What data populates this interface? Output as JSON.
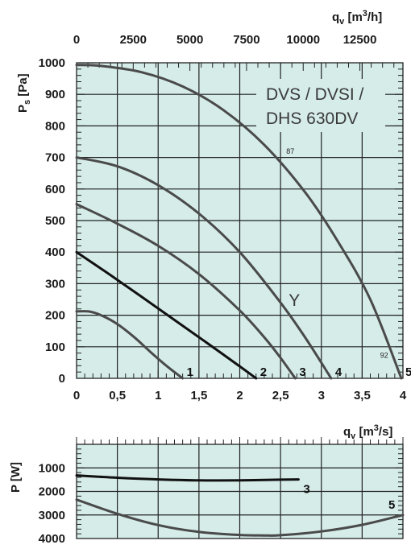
{
  "chart_data": [
    {
      "type": "line",
      "title": "DVS / DVSI / DHS 630DV",
      "title_lines": [
        "DVS / DVSI /",
        "DHS 630DV"
      ],
      "xlabel": "qv [m3/s]",
      "x2label": "qv [m3/h]",
      "ylabel": "Ps [Pa]",
      "xlim": [
        0,
        4
      ],
      "ylim": [
        0,
        1000
      ],
      "x2lim": [
        0,
        14400
      ],
      "x_ticks": [
        "0",
        "0,5",
        "1",
        "1,5",
        "2",
        "2,5",
        "3",
        "3,5",
        "4"
      ],
      "x2_ticks": [
        "0",
        "2500",
        "5000",
        "7500",
        "10000",
        "12500"
      ],
      "y_ticks": [
        "0",
        "100",
        "200",
        "300",
        "400",
        "500",
        "600",
        "700",
        "800",
        "900",
        "1000"
      ],
      "grid": true,
      "series": [
        {
          "name": "1",
          "color": "#4a4a4a",
          "x": [
            0,
            0.15,
            0.3,
            0.5,
            0.7,
            0.9,
            1.1,
            1.3
          ],
          "y": [
            212,
            212,
            200,
            172,
            132,
            85,
            40,
            0
          ]
        },
        {
          "name": "2",
          "color": "#111111",
          "x": [
            0,
            0.4,
            0.8,
            1.2,
            1.6,
            2.0,
            2.2
          ],
          "y": [
            400,
            330,
            258,
            185,
            112,
            38,
            0
          ]
        },
        {
          "name": "3",
          "color": "#4a4a4a",
          "x": [
            0,
            0.5,
            1.0,
            1.5,
            2.0,
            2.3,
            2.5,
            2.68
          ],
          "y": [
            552,
            490,
            420,
            330,
            215,
            130,
            65,
            0
          ]
        },
        {
          "name": "4",
          "color": "#4a4a4a",
          "x": [
            0,
            0.5,
            1.0,
            1.5,
            2.0,
            2.5,
            2.8,
            3.12
          ],
          "y": [
            700,
            672,
            612,
            522,
            400,
            240,
            130,
            0
          ]
        },
        {
          "name": "5",
          "color": "#4a4a4a",
          "x": [
            0,
            0.3,
            0.8,
            1.3,
            1.8,
            2.3,
            2.8,
            3.2,
            3.6,
            3.98
          ],
          "y": [
            993,
            990,
            970,
            925,
            850,
            740,
            590,
            435,
            250,
            0
          ]
        }
      ],
      "annotations": [
        {
          "text": "Y",
          "x": 2.6,
          "y": 230
        },
        {
          "text": "87",
          "x": 2.57,
          "y": 712
        },
        {
          "text": "92",
          "x": 3.72,
          "y": 65
        }
      ]
    },
    {
      "type": "line",
      "xlabel": "qv [m3/s]",
      "ylabel": "P [W]",
      "xlim": [
        0,
        4
      ],
      "ylim": [
        4000,
        0
      ],
      "y_ticks": [
        "1000",
        "2000",
        "3000",
        "4000"
      ],
      "grid": true,
      "series": [
        {
          "name": "3",
          "color": "#111111",
          "x": [
            0,
            0.5,
            1.0,
            1.5,
            2.0,
            2.5,
            2.72
          ],
          "y": [
            1320,
            1420,
            1490,
            1530,
            1530,
            1500,
            1490
          ]
        },
        {
          "name": "5",
          "color": "#4a4a4a",
          "x": [
            0,
            0.5,
            1.0,
            1.5,
            2.0,
            2.3,
            2.5,
            3.0,
            3.5,
            4.0
          ],
          "y": [
            2350,
            2950,
            3430,
            3720,
            3850,
            3870,
            3860,
            3700,
            3420,
            3000
          ]
        }
      ]
    }
  ]
}
